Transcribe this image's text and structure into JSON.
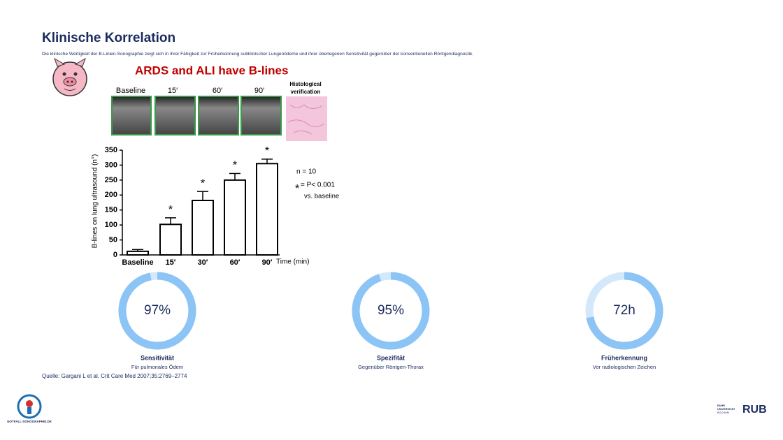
{
  "header": {
    "title": "Klinische Korrelation",
    "subtitle": "Die klinische Wertigkeit der B-Linien-Sonographie zeigt sich in ihrer Fähigkeit zur Früherkennung subklinischer Lungenödeme und ihrer überlegenen Sensitivität gegenüber der konventionellen Röntgendiagnostik."
  },
  "figure": {
    "title": "ARDS and  ALI have B-lines",
    "image_labels": [
      "Baseline",
      "15′",
      "60′",
      "90′"
    ],
    "histology_label": [
      "Histological",
      "verification"
    ],
    "chart_data": {
      "type": "bar",
      "y_label": "B-lines on lung ultrasound (n°)",
      "x_label": "Time (min)",
      "categories": [
        "Baseline",
        "15′",
        "30′",
        "60′",
        "90′"
      ],
      "values": [
        12,
        102,
        182,
        250,
        305
      ],
      "errors": [
        6,
        22,
        30,
        22,
        15
      ],
      "significance": [
        null,
        "*",
        "*",
        "*",
        "*"
      ],
      "color": "#ffffff",
      "ylim": [
        0,
        350
      ],
      "yticks": [
        0,
        50,
        100,
        150,
        200,
        250,
        300,
        350
      ],
      "annotations": [
        "n = 10",
        "*",
        "= P< 0.001",
        "vs. baseline"
      ]
    }
  },
  "gauges": [
    {
      "value": 97,
      "value_label": "97%",
      "lim": [
        0,
        100
      ],
      "label": "Sensitivität",
      "sublabel": "Für pulmonales Ödem"
    },
    {
      "value": 95,
      "value_label": "95%",
      "lim": [
        0,
        100
      ],
      "label": "Spezifität",
      "sublabel": "Gegenüber Röntgen-Thorax"
    },
    {
      "value": 72,
      "value_label": "72h",
      "lim": [
        0,
        100
      ],
      "label": "Früherkennung",
      "sublabel": "Vor radiologischen Zeichen"
    }
  ],
  "footer": {
    "source": "Quelle: Gargani L et al. Crit Care Med 2007;35:2769–2774",
    "logo_left": "NOTFALL-SONOGRAPHIE.DE",
    "logo_right_small": [
      "RUHR",
      "UNIVERSITÄT",
      "BOCHUM"
    ],
    "logo_right": "RUB"
  }
}
